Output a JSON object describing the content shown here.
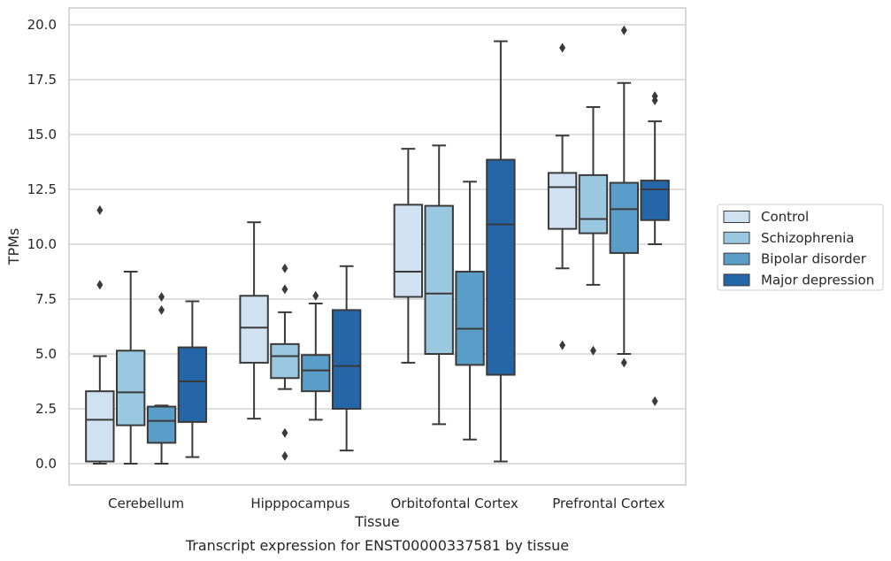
{
  "chart_data": {
    "type": "box",
    "title": "",
    "caption": "Transcript expression for ENST00000337581 by tissue",
    "xlabel": "Tissue",
    "ylabel": "TPMs",
    "ylim": [
      -1.0,
      20.7
    ],
    "yticks": [
      0.0,
      2.5,
      5.0,
      7.5,
      10.0,
      12.5,
      15.0,
      17.5,
      20.0
    ],
    "ytick_labels": [
      "0.0",
      "2.5",
      "5.0",
      "7.5",
      "10.0",
      "12.5",
      "15.0",
      "17.5",
      "20.0"
    ],
    "grid": "horizontal",
    "legend_position": "right",
    "categories": [
      "Cerebellum",
      "Hipppocampus",
      "Orbitofontal Cortex",
      "Prefrontal Cortex"
    ],
    "series": [
      {
        "name": "Control",
        "color": "#d0e1f2",
        "boxes": [
          {
            "whislo": 0.0,
            "q1": 0.1,
            "median": 2.0,
            "q3": 3.3,
            "whishi": 4.9,
            "fliers": [
              8.15,
              11.55
            ]
          },
          {
            "whislo": 2.05,
            "q1": 4.6,
            "median": 6.2,
            "q3": 7.65,
            "whishi": 11.0,
            "fliers": []
          },
          {
            "whislo": 4.6,
            "q1": 7.6,
            "median": 8.75,
            "q3": 11.8,
            "whishi": 14.35,
            "fliers": []
          },
          {
            "whislo": 8.9,
            "q1": 10.7,
            "median": 12.6,
            "q3": 13.25,
            "whishi": 14.95,
            "fliers": [
              5.4,
              18.95
            ]
          }
        ]
      },
      {
        "name": "Schizophrenia",
        "color": "#9ac8e0",
        "boxes": [
          {
            "whislo": 0.0,
            "q1": 1.75,
            "median": 3.25,
            "q3": 5.15,
            "whishi": 8.75,
            "fliers": []
          },
          {
            "whislo": 3.4,
            "q1": 3.9,
            "median": 4.9,
            "q3": 5.45,
            "whishi": 6.9,
            "fliers": [
              0.35,
              1.4,
              7.95,
              8.9
            ]
          },
          {
            "whislo": 1.8,
            "q1": 5.0,
            "median": 7.75,
            "q3": 11.75,
            "whishi": 14.5,
            "fliers": []
          },
          {
            "whislo": 8.15,
            "q1": 10.5,
            "median": 11.15,
            "q3": 13.15,
            "whishi": 16.25,
            "fliers": [
              5.15
            ]
          }
        ]
      },
      {
        "name": "Bipolar disorder",
        "color": "#5a9dc8",
        "boxes": [
          {
            "whislo": 0.0,
            "q1": 0.95,
            "median": 1.95,
            "q3": 2.6,
            "whishi": 2.65,
            "fliers": [
              7.0,
              7.6
            ]
          },
          {
            "whislo": 2.0,
            "q1": 3.3,
            "median": 4.25,
            "q3": 4.95,
            "whishi": 7.3,
            "fliers": [
              7.65
            ]
          },
          {
            "whislo": 1.1,
            "q1": 4.5,
            "median": 6.15,
            "q3": 8.75,
            "whishi": 12.85,
            "fliers": []
          },
          {
            "whislo": 5.0,
            "q1": 9.6,
            "median": 11.6,
            "q3": 12.8,
            "whishi": 17.35,
            "fliers": [
              4.6,
              19.75
            ]
          }
        ]
      },
      {
        "name": "Major depression",
        "color": "#2566a9",
        "boxes": [
          {
            "whislo": 0.3,
            "q1": 1.9,
            "median": 3.75,
            "q3": 5.3,
            "whishi": 7.4,
            "fliers": []
          },
          {
            "whislo": 0.6,
            "q1": 2.5,
            "median": 4.45,
            "q3": 7.0,
            "whishi": 9.0,
            "fliers": []
          },
          {
            "whislo": 0.1,
            "q1": 4.05,
            "median": 10.9,
            "q3": 13.85,
            "whishi": 19.25,
            "fliers": []
          },
          {
            "whislo": 10.0,
            "q1": 11.1,
            "median": 12.5,
            "q3": 12.9,
            "whishi": 15.6,
            "fliers": [
              2.85,
              16.55,
              16.75
            ]
          }
        ]
      }
    ]
  }
}
